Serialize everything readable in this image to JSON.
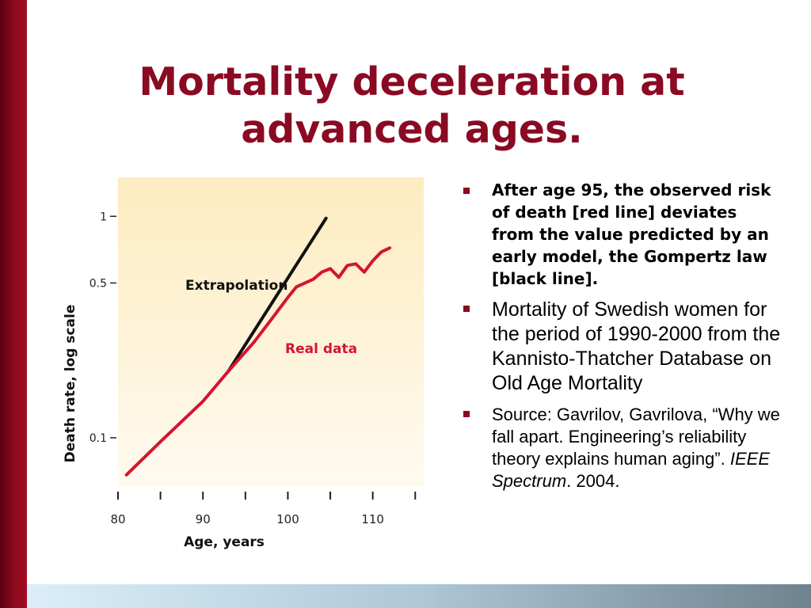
{
  "slide": {
    "title_line1": "Mortality deceleration at",
    "title_line2": "advanced ages.",
    "colors": {
      "accent": "#8a0a23",
      "bullet": "#8a0a23",
      "chart_bg": "#fdeec4"
    }
  },
  "bullets": [
    {
      "text": "After age 95, the observed risk of death [red line] deviates from the value predicted by an early model, the Gompertz law [black line]."
    },
    {
      "text": "Mortality of Swedish women for the period of 1990-2000 from the Kannisto-Thatcher Database on Old Age Mortality"
    },
    {
      "text_before": "Source: Gavrilov, Gavrilova, “Why we fall apart. Engineering’s reliability theory explains human aging”. ",
      "italic": "IEEE Spectrum",
      "text_after": ". 2004."
    }
  ],
  "chart_data": {
    "type": "line",
    "xlabel": "Age, years",
    "ylabel": "Death rate, log scale",
    "y_scale": "log",
    "xlim": [
      80,
      116
    ],
    "ylim": [
      0.06,
      1.5
    ],
    "x_ticks": [
      80,
      85,
      90,
      95,
      100,
      105,
      110,
      115
    ],
    "x_tick_labels": [
      "80",
      "90",
      "100",
      "110"
    ],
    "x_tick_label_values": [
      80,
      90,
      100,
      110
    ],
    "y_ticks": [
      1,
      0.5,
      0.1
    ],
    "y_tick_labels": [
      "1",
      "0.5",
      "0.1"
    ],
    "series": [
      {
        "name": "Extrapolation",
        "color": "#111111",
        "x": [
          93,
          104.5
        ],
        "y": [
          0.2,
          0.98
        ]
      },
      {
        "name": "Real data",
        "color": "#d41530",
        "x": [
          81,
          85,
          90,
          93,
          96,
          98,
          100,
          101,
          103,
          104,
          105,
          106,
          107,
          108,
          109,
          110,
          111,
          112
        ],
        "y": [
          0.068,
          0.096,
          0.146,
          0.2,
          0.27,
          0.34,
          0.43,
          0.48,
          0.52,
          0.56,
          0.58,
          0.53,
          0.6,
          0.61,
          0.56,
          0.63,
          0.69,
          0.72
        ]
      }
    ]
  }
}
